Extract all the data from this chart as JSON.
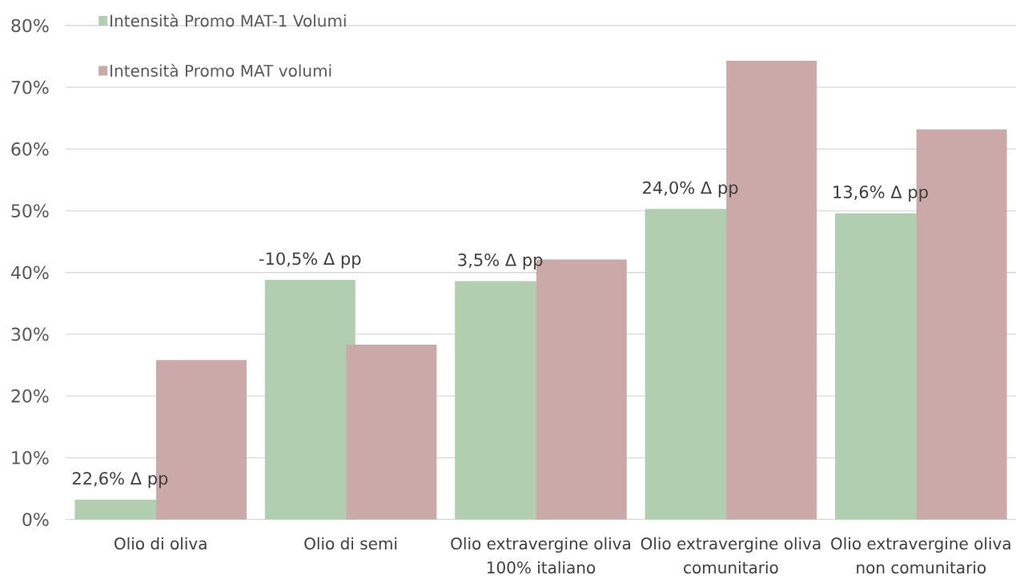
{
  "chart_data": {
    "type": "bar",
    "categories": [
      "Olio di oliva",
      "Olio di semi",
      "Olio extravergine oliva 100% italiano",
      "Olio extravergine oliva comunitario",
      "Olio extravergine oliva non comunitario"
    ],
    "series": [
      {
        "name": "Intensità Promo MAT-1 Volumi",
        "color": "#b1cfb0",
        "values": [
          3.2,
          38.8,
          38.6,
          50.3,
          49.6
        ]
      },
      {
        "name": "Intensità Promo MAT volumi",
        "color": "#caa9a8",
        "values": [
          25.8,
          28.3,
          42.1,
          74.3,
          63.2
        ]
      }
    ],
    "annotations": [
      {
        "text": "22,6% Δ pp",
        "x": "Olio di oliva",
        "y": 3.2
      },
      {
        "text": "-10,5% Δ pp",
        "x": "Olio di semi",
        "y": 38.8
      },
      {
        "text": "3,5% Δ pp",
        "x": "Olio extravergine oliva 100% italiano",
        "y": 38.6
      },
      {
        "text": "24,0% Δ pp",
        "x": "Olio extravergine oliva comunitario",
        "y": 50.3
      },
      {
        "text": "13,6% Δ pp",
        "x": "Olio extravergine oliva non comunitario",
        "y": 49.6
      }
    ],
    "ylim": [
      0,
      80
    ],
    "yticks": [
      {
        "value": 0,
        "label": "0%"
      },
      {
        "value": 10,
        "label": "10%"
      },
      {
        "value": 20,
        "label": "20%"
      },
      {
        "value": 30,
        "label": "30%"
      },
      {
        "value": 40,
        "label": "40%"
      },
      {
        "value": 50,
        "label": "50%"
      },
      {
        "value": 60,
        "label": "60%"
      },
      {
        "value": 70,
        "label": "70%"
      },
      {
        "value": 80,
        "label": "80%"
      }
    ],
    "grid": "y",
    "legend": "top left"
  }
}
